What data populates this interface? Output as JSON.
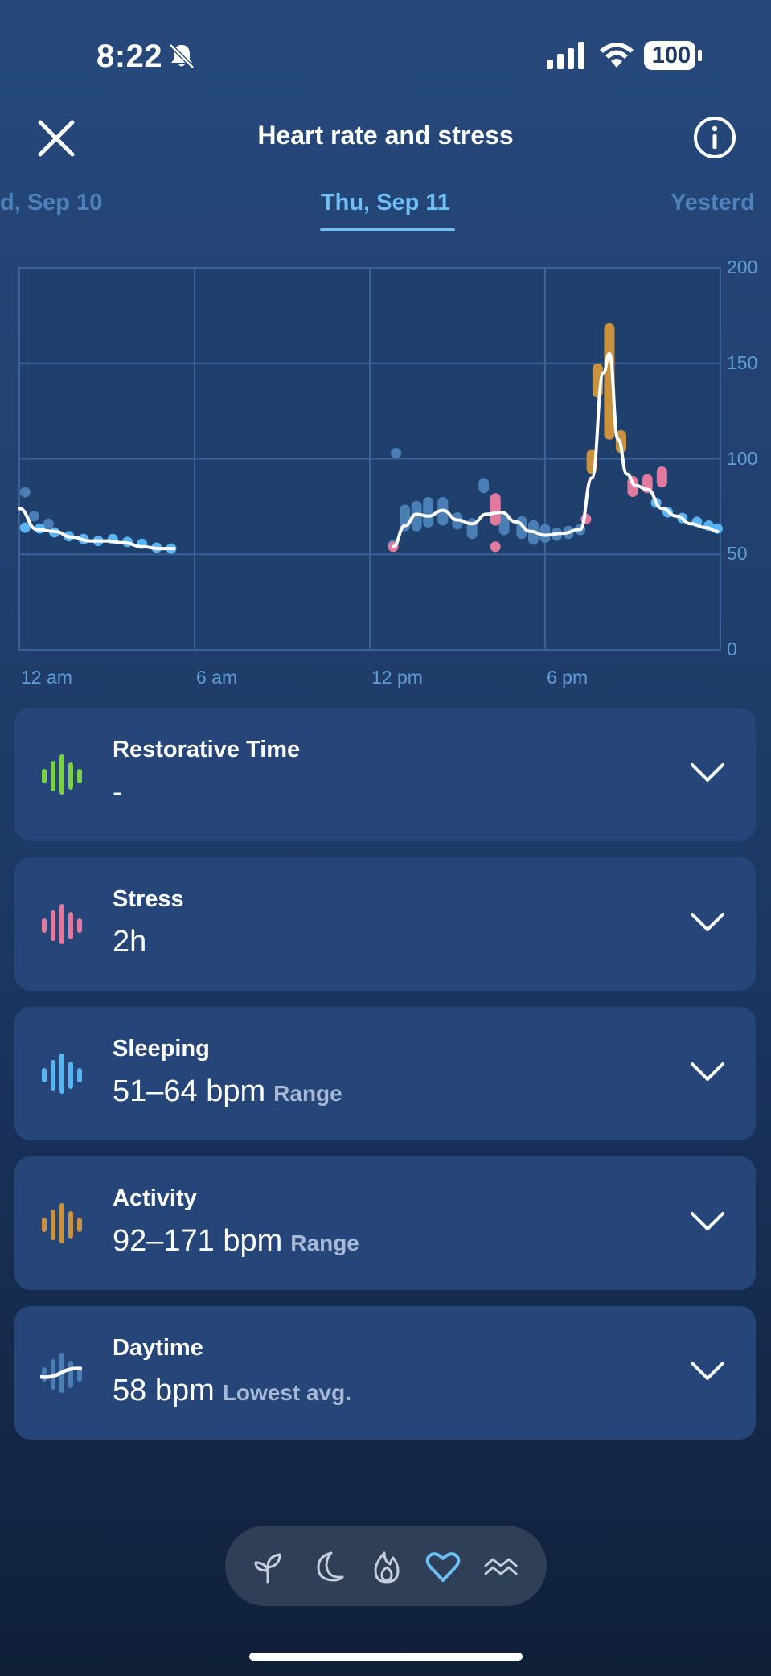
{
  "status_bar": {
    "time": "8:22",
    "battery": "100",
    "icons": [
      "bell-slash-icon",
      "cellular-signal-icon",
      "wifi-icon",
      "battery-icon"
    ]
  },
  "header": {
    "title": "Heart rate and stress",
    "close_icon": "close-icon",
    "info_icon": "info-icon"
  },
  "date_tabs": {
    "previous": "d, Sep 10",
    "current": "Thu, Sep 11",
    "next": "Yesterd"
  },
  "colors": {
    "background": "#213f6d",
    "card": "#26467a",
    "accent_blue": "#6fbff6",
    "sleep": "#5ab4f2",
    "daytime": "#4a7fb6",
    "stress": "#e27a9f",
    "activity": "#c8923f",
    "restorative": "#7ad046"
  },
  "chart_data": {
    "type": "line",
    "x_axis": {
      "ticks": [
        "12 am",
        "6 am",
        "12 pm",
        "6 pm"
      ],
      "range_hours": [
        0,
        24
      ]
    },
    "y_axis": {
      "ticks": [
        "0",
        "50",
        "100",
        "150",
        "200"
      ],
      "range": [
        0,
        200
      ]
    },
    "grid": true,
    "series": [
      {
        "kind": "heart_rate_line",
        "points": [
          [
            0,
            74
          ],
          [
            0.6,
            63
          ],
          [
            1.2,
            62
          ],
          [
            1.8,
            59
          ],
          [
            2.4,
            57
          ],
          [
            3.0,
            57
          ],
          [
            3.6,
            56
          ],
          [
            4.2,
            54
          ],
          [
            4.8,
            53
          ],
          [
            5.3,
            53
          ],
          [
            12.8,
            54
          ],
          [
            13.2,
            65
          ],
          [
            13.6,
            71
          ],
          [
            14.0,
            70
          ],
          [
            14.5,
            73
          ],
          [
            15.0,
            68
          ],
          [
            15.5,
            66
          ],
          [
            16.0,
            71
          ],
          [
            16.5,
            72
          ],
          [
            17.0,
            67
          ],
          [
            17.5,
            62
          ],
          [
            18.0,
            60
          ],
          [
            18.6,
            61
          ],
          [
            19.2,
            63
          ],
          [
            19.6,
            90
          ],
          [
            20.0,
            145
          ],
          [
            20.2,
            155
          ],
          [
            20.5,
            110
          ],
          [
            20.8,
            92
          ],
          [
            21.1,
            86
          ],
          [
            21.5,
            84
          ],
          [
            22.0,
            74
          ],
          [
            22.5,
            70
          ],
          [
            23.0,
            66
          ],
          [
            23.5,
            64
          ],
          [
            23.9,
            62
          ]
        ]
      },
      {
        "kind": "sleep",
        "bars": [
          [
            0.2,
            62,
            66
          ],
          [
            0.7,
            62,
            65
          ],
          [
            1.2,
            60,
            63
          ],
          [
            1.7,
            58,
            61
          ],
          [
            2.2,
            56,
            60
          ],
          [
            2.7,
            55,
            59
          ],
          [
            3.2,
            56,
            60
          ],
          [
            3.7,
            55,
            58
          ],
          [
            4.2,
            54,
            57
          ],
          [
            4.7,
            52,
            55
          ],
          [
            5.2,
            52,
            54
          ],
          [
            21.8,
            76,
            78
          ],
          [
            22.2,
            70,
            74
          ],
          [
            22.7,
            67,
            71
          ],
          [
            23.2,
            65,
            69
          ],
          [
            23.6,
            63,
            67
          ],
          [
            23.9,
            62,
            65
          ]
        ]
      },
      {
        "kind": "daytime",
        "bars": [
          [
            0.2,
            80,
            85
          ],
          [
            0.5,
            68,
            72
          ],
          [
            1.0,
            64,
            68
          ],
          [
            12.8,
            53,
            57
          ],
          [
            13.2,
            62,
            76
          ],
          [
            13.6,
            62,
            78
          ],
          [
            14.0,
            64,
            80
          ],
          [
            14.5,
            65,
            80
          ],
          [
            15.0,
            63,
            72
          ],
          [
            15.5,
            58,
            69
          ],
          [
            15.9,
            82,
            90
          ],
          [
            16.6,
            60,
            72
          ],
          [
            17.2,
            58,
            70
          ],
          [
            17.6,
            55,
            68
          ],
          [
            18.0,
            56,
            66
          ],
          [
            18.4,
            57,
            64
          ],
          [
            18.8,
            58,
            65
          ],
          [
            19.2,
            60,
            66
          ],
          [
            12.9,
            102,
            104
          ]
        ]
      },
      {
        "kind": "stress",
        "bars": [
          [
            12.8,
            53,
            55
          ],
          [
            16.3,
            65,
            82
          ],
          [
            16.3,
            53,
            55
          ],
          [
            19.4,
            67,
            70
          ],
          [
            21.0,
            80,
            91
          ],
          [
            21.5,
            82,
            92
          ],
          [
            22.0,
            85,
            96
          ]
        ]
      },
      {
        "kind": "activity",
        "bars": [
          [
            19.6,
            92,
            105
          ],
          [
            19.8,
            132,
            150
          ],
          [
            20.2,
            110,
            171
          ],
          [
            20.6,
            103,
            115
          ]
        ]
      }
    ]
  },
  "cards": [
    {
      "title": "Restorative Time",
      "value": "-",
      "sub": "",
      "icon": "restorative-bars-icon"
    },
    {
      "title": "Stress",
      "value": "2h",
      "sub": "",
      "icon": "stress-bars-icon"
    },
    {
      "title": "Sleeping",
      "value": "51–64 bpm",
      "sub": "Range",
      "icon": "sleep-bars-icon"
    },
    {
      "title": "Activity",
      "value": "92–171 bpm",
      "sub": "Range",
      "icon": "activity-bars-icon"
    },
    {
      "title": "Daytime",
      "value": "58 bpm",
      "sub": "Lowest avg.",
      "icon": "daytime-wave-icon"
    }
  ],
  "bottom_nav": {
    "items": [
      "sprout-icon",
      "moon-icon",
      "flame-icon",
      "heart-icon",
      "waves-icon"
    ],
    "active": "heart-icon"
  }
}
